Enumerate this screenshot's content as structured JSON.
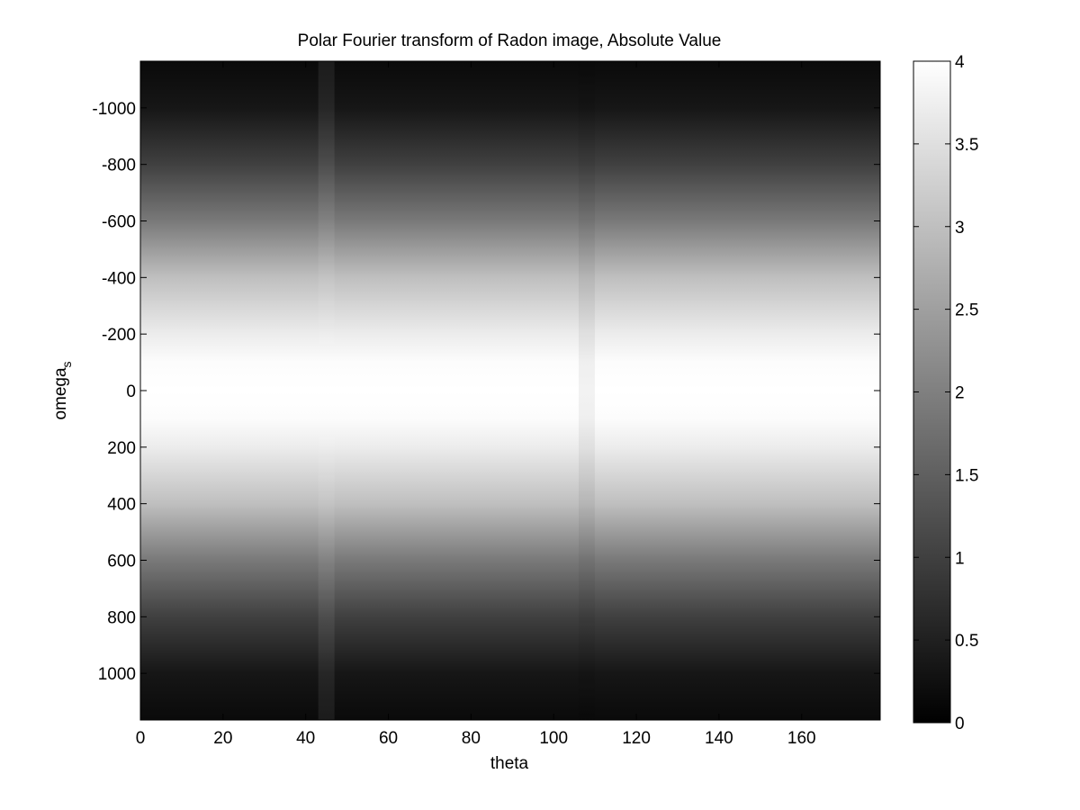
{
  "chart_data": {
    "type": "heatmap",
    "title": "Polar Fourier transform of Radon image, Absolute Value",
    "xlabel": "theta",
    "ylabel": "omega",
    "ylabel_subscript": "s",
    "xlim": [
      0,
      179
    ],
    "ylim": [
      -1165,
      1165
    ],
    "y_reversed": true,
    "xticks": [
      0,
      20,
      40,
      60,
      80,
      100,
      120,
      140,
      160
    ],
    "xtick_labels": [
      "0",
      "20",
      "40",
      "60",
      "80",
      "100",
      "120",
      "140",
      "160"
    ],
    "yticks": [
      -1000,
      -800,
      -600,
      -400,
      -200,
      0,
      200,
      400,
      600,
      800,
      1000
    ],
    "ytick_labels": [
      "-1000",
      "-800",
      "-600",
      "-400",
      "-200",
      "0",
      "200",
      "400",
      "600",
      "800",
      "1000"
    ],
    "colormap": "gray",
    "clim": [
      0,
      4
    ],
    "colorbar_ticks": [
      0,
      0.5,
      1,
      1.5,
      2,
      2.5,
      3,
      3.5,
      4
    ],
    "colorbar_tick_labels": [
      "0",
      "0.5",
      "1",
      "1.5",
      "2",
      "2.5",
      "3",
      "3.5",
      "4"
    ],
    "colorbar_position": "right",
    "grid": false,
    "profile_omega": [
      -1165,
      -1000,
      -800,
      -600,
      -400,
      -200,
      -100,
      0,
      100,
      200,
      400,
      600,
      800,
      1000,
      1165
    ],
    "profile_value": [
      0.15,
      0.35,
      1.0,
      1.9,
      3.0,
      3.7,
      3.95,
      4.0,
      3.95,
      3.7,
      3.0,
      1.9,
      1.0,
      0.35,
      0.15
    ],
    "theta_features": [
      {
        "theta": 45,
        "effect": "slightly brighter vertical band"
      },
      {
        "theta": 108,
        "effect": "slightly darker vertical band"
      }
    ]
  }
}
